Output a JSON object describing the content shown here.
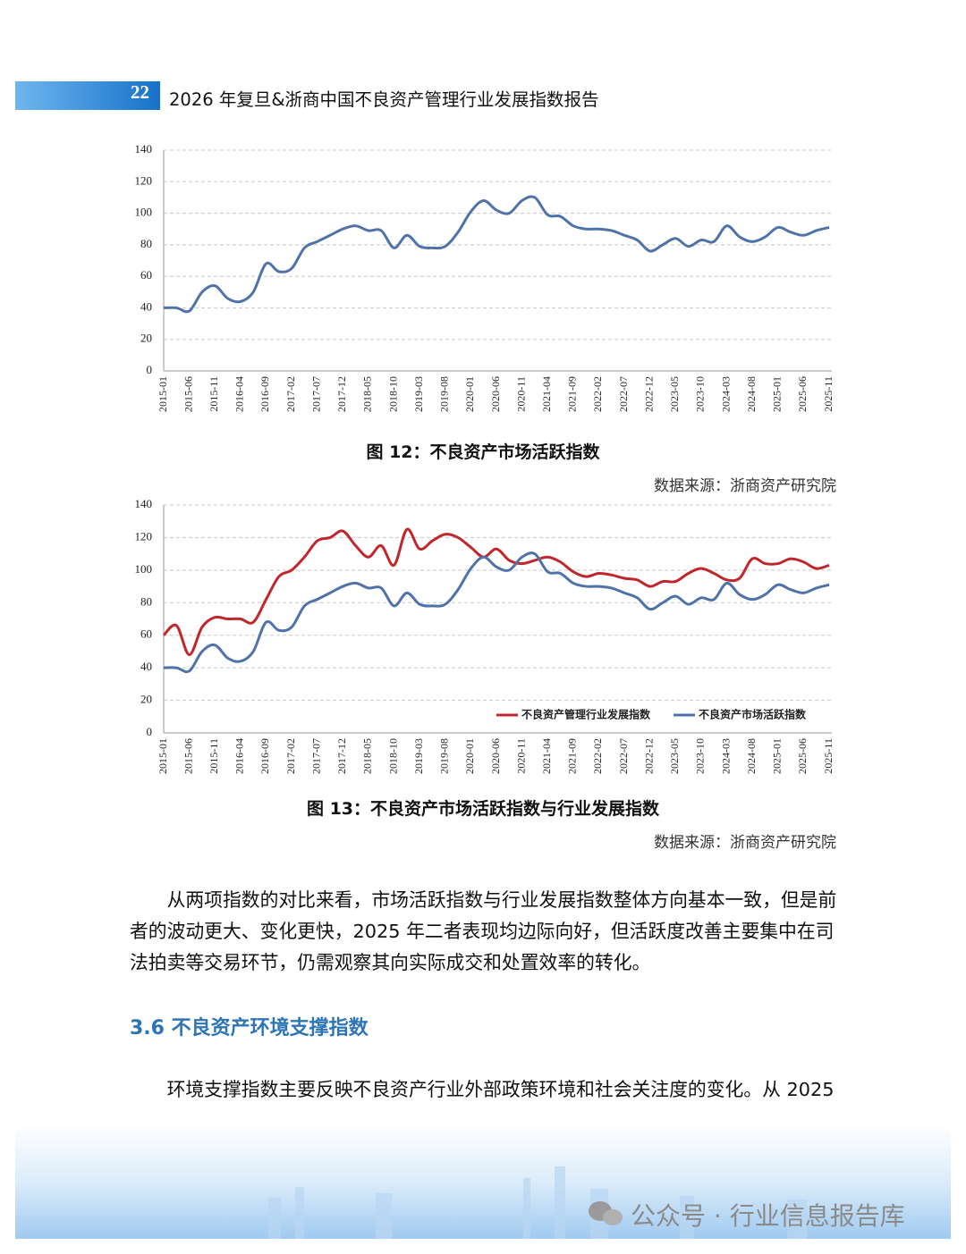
{
  "header": {
    "page_number": "22",
    "title": "2026 年复旦&浙商中国不良资产管理行业发展指数报告"
  },
  "chart_data": [
    {
      "type": "line",
      "title": "图 12：不良资产市场活跃指数",
      "source": "数据来源：浙商资产研究院",
      "categories": [
        "2015-01",
        null,
        "2015-06",
        null,
        "2015-11",
        null,
        "2016-04",
        null,
        "2016-09",
        null,
        "2017-02",
        null,
        "2017-07",
        null,
        "2017-12",
        null,
        "2018-05",
        null,
        "2018-10",
        null,
        "2019-03",
        null,
        "2019-08",
        null,
        "2020-01",
        null,
        "2020-06",
        null,
        "2020-11",
        null,
        "2021-04",
        null,
        "2021-09",
        null,
        "2022-02",
        null,
        "2022-07",
        null,
        "2022-12",
        null,
        "2023-05",
        null,
        "2023-10",
        null,
        "2024-03",
        null,
        "2024-08",
        null,
        "2025-01",
        null,
        "2025-06",
        null,
        "2025-11"
      ],
      "series": [
        {
          "color": "#4f72a8",
          "values": [
            40,
            40,
            38,
            50,
            54,
            46,
            44,
            50,
            68,
            63,
            65,
            78,
            82,
            86,
            90,
            92,
            89,
            89,
            78,
            86,
            79,
            78,
            79,
            88,
            101,
            108,
            102,
            100,
            108,
            110,
            99,
            98,
            92,
            90,
            90,
            89,
            86,
            83,
            76,
            80,
            84,
            79,
            83,
            82,
            92,
            85,
            82,
            85,
            91,
            88,
            86,
            89,
            91
          ]
        }
      ],
      "ylim": [
        0,
        140
      ],
      "yticks": [
        0,
        20,
        40,
        60,
        80,
        100,
        120,
        140
      ],
      "grid": true
    },
    {
      "type": "line",
      "title": "图 13：不良资产市场活跃指数与行业发展指数",
      "source": "数据来源：浙商资产研究院",
      "categories": [
        "2015-01",
        null,
        "2015-06",
        null,
        "2015-11",
        null,
        "2016-04",
        null,
        "2016-09",
        null,
        "2017-02",
        null,
        "2017-07",
        null,
        "2017-12",
        null,
        "2018-05",
        null,
        "2018-10",
        null,
        "2019-03",
        null,
        "2019-08",
        null,
        "2020-01",
        null,
        "2020-06",
        null,
        "2020-11",
        null,
        "2021-04",
        null,
        "2021-09",
        null,
        "2022-02",
        null,
        "2022-07",
        null,
        "2022-12",
        null,
        "2023-05",
        null,
        "2023-10",
        null,
        "2024-03",
        null,
        "2024-08",
        null,
        "2025-01",
        null,
        "2025-06",
        null,
        "2025-11"
      ],
      "series": [
        {
          "name": "不良资产管理行业发展指数",
          "color": "#c0272d",
          "values": [
            60,
            66,
            48,
            65,
            71,
            70,
            70,
            68,
            82,
            96,
            100,
            108,
            118,
            120,
            124,
            115,
            108,
            115,
            103,
            125,
            113,
            118,
            122,
            120,
            114,
            108,
            113,
            106,
            104,
            106,
            108,
            105,
            99,
            96,
            98,
            97,
            95,
            94,
            90,
            93,
            93,
            98,
            101,
            98,
            94,
            95,
            107,
            104,
            104,
            107,
            105,
            101,
            103
          ]
        },
        {
          "name": "不良资产市场活跃指数",
          "color": "#4f72a8",
          "values": [
            40,
            40,
            38,
            50,
            54,
            46,
            44,
            50,
            68,
            63,
            65,
            78,
            82,
            86,
            90,
            92,
            89,
            89,
            78,
            86,
            79,
            78,
            79,
            88,
            101,
            108,
            102,
            100,
            108,
            110,
            99,
            98,
            92,
            90,
            90,
            89,
            86,
            83,
            76,
            80,
            84,
            79,
            83,
            82,
            92,
            85,
            82,
            85,
            91,
            88,
            86,
            89,
            91
          ]
        }
      ],
      "ylim": [
        0,
        140
      ],
      "yticks": [
        0,
        20,
        40,
        60,
        80,
        100,
        120,
        140
      ],
      "grid": true,
      "legend": "bottom-right"
    }
  ],
  "body": {
    "paragraph_1": "从两项指数的对比来看，市场活跃指数与行业发展指数整体方向基本一致，但是前者的波动更大、变化更快，2025 年二者表现均边际向好，但活跃度改善主要集中在司法拍卖等交易环节，仍需观察其向实际成交和处置效率的转化。",
    "section_heading": "3.6  不良资产环境支撑指数",
    "paragraph_2": "环境支撑指数主要反映不良资产行业外部政策环境和社会关注度的变化。从 2025"
  },
  "footer": {
    "watermark": "公众号 · 行业信息报告库"
  }
}
